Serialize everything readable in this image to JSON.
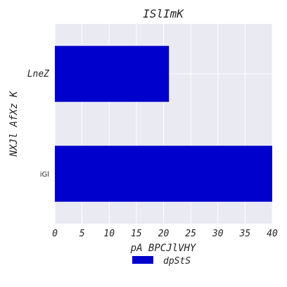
{
  "chart_data": {
    "type": "bar",
    "orientation": "horizontal",
    "title": "ISlImK",
    "xlabel": "pA BPCJlVHY",
    "ylabel": "NXJl AfXz K",
    "categories": [
      "LneZ",
      "iGl"
    ],
    "series": [
      {
        "name": "dpStS",
        "values": [
          21,
          40
        ],
        "color": "#0000cc"
      }
    ],
    "xlim": [
      0,
      40
    ],
    "xticks": [
      0,
      5,
      10,
      15,
      20,
      25,
      30,
      35,
      40
    ],
    "grid": true,
    "legend_position": "bottom-center",
    "background_color": "#eaeaf2"
  }
}
